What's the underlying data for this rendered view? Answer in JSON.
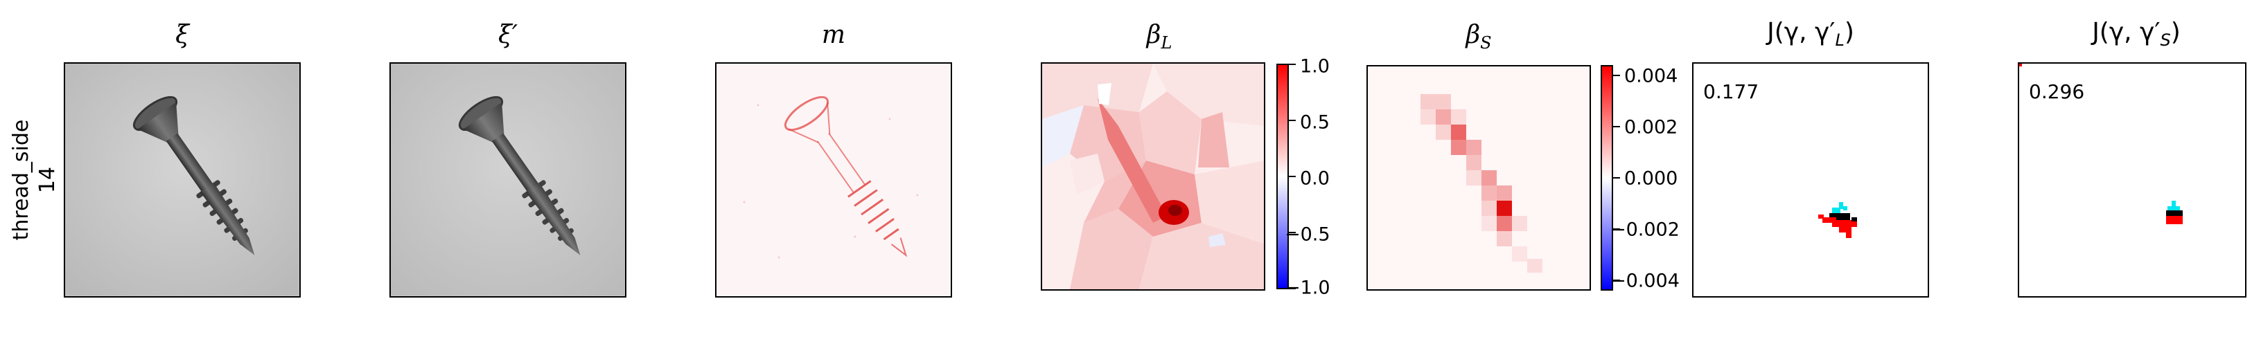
{
  "row": {
    "label_line1": "thread_side",
    "label_line2": "14"
  },
  "panels": {
    "xi": {
      "title": "ξ"
    },
    "xi_prime": {
      "title": "ξ′"
    },
    "m": {
      "title": "m"
    },
    "beta_L": {
      "title": "β",
      "subscript": "L",
      "colorbar_ticks": [
        "1.0",
        "0.5",
        "0.0",
        "−0.5",
        "−1.0"
      ]
    },
    "beta_S": {
      "title": "β",
      "subscript": "S",
      "colorbar_ticks": [
        "0.004",
        "0.002",
        "0.000",
        "−0.002",
        "−0.004"
      ]
    },
    "J_L": {
      "title": "J(γ, γ′",
      "subscript": "L",
      "title_end": ")",
      "score": "0.177"
    },
    "J_S": {
      "title": "J(γ, γ′",
      "subscript": "S",
      "title_end": ")",
      "score": "0.296"
    }
  },
  "colors": {
    "positive": "#ff0000",
    "zero": "#ffffff",
    "negative": "#0000ff",
    "overlap": "#000000",
    "prediction": "#00e5ee"
  }
}
